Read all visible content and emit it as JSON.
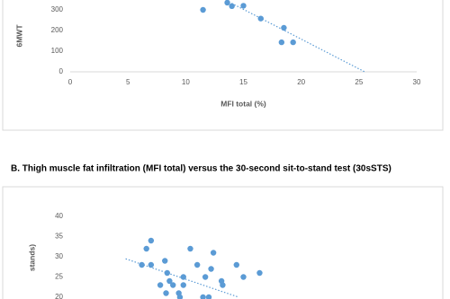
{
  "section_heading": "B. Thigh muscle fat infiltration (MFI total) versus the 30-second sit-to-stand test (30sSTS)",
  "chart_data": [
    {
      "type": "scatter",
      "x_label": "MFI total (%)",
      "y_label": "6MWT",
      "color": "#5b9bd5",
      "x": [
        11.5,
        14.0,
        15.0,
        13.6,
        16.5,
        18.5,
        18.3,
        19.3
      ],
      "values": [
        300,
        318,
        320,
        335,
        258,
        213,
        143,
        143
      ],
      "trendline": {
        "x": [
          13,
          25.5
        ],
        "y": [
          360,
          0
        ]
      },
      "xlim": [
        0,
        30
      ],
      "xticks": [
        0,
        5,
        10,
        15,
        20,
        25,
        30
      ],
      "ylim": [
        0,
        400
      ],
      "yticks": [
        0,
        100,
        200,
        300
      ]
    },
    {
      "type": "scatter",
      "x_label": "",
      "y_label": "stands)",
      "color": "#5b9bd5",
      "x": [
        7.0,
        6.6,
        6.2,
        7.0,
        8.2,
        8.4,
        8.6,
        8.9,
        7.8,
        8.3,
        9.4,
        9.5,
        9.8,
        9.8,
        10.4,
        11.0,
        11.5,
        12.0,
        12.2,
        12.4,
        11.7,
        13.1,
        13.2,
        14.4,
        15.0,
        16.4
      ],
      "values": [
        34,
        32,
        28,
        28,
        29,
        26,
        24,
        23,
        23,
        21,
        21,
        20,
        25,
        23,
        32,
        28,
        20,
        20,
        27,
        31,
        25,
        24,
        23,
        28,
        25,
        26
      ],
      "trendline": {
        "x": [
          4.8,
          14.6
        ],
        "y": [
          29.5,
          20
        ]
      },
      "xlim": [
        0,
        30
      ],
      "xticks": [],
      "ylim": [
        0,
        40
      ],
      "yticks": [
        20,
        25,
        30,
        35,
        40
      ]
    }
  ]
}
